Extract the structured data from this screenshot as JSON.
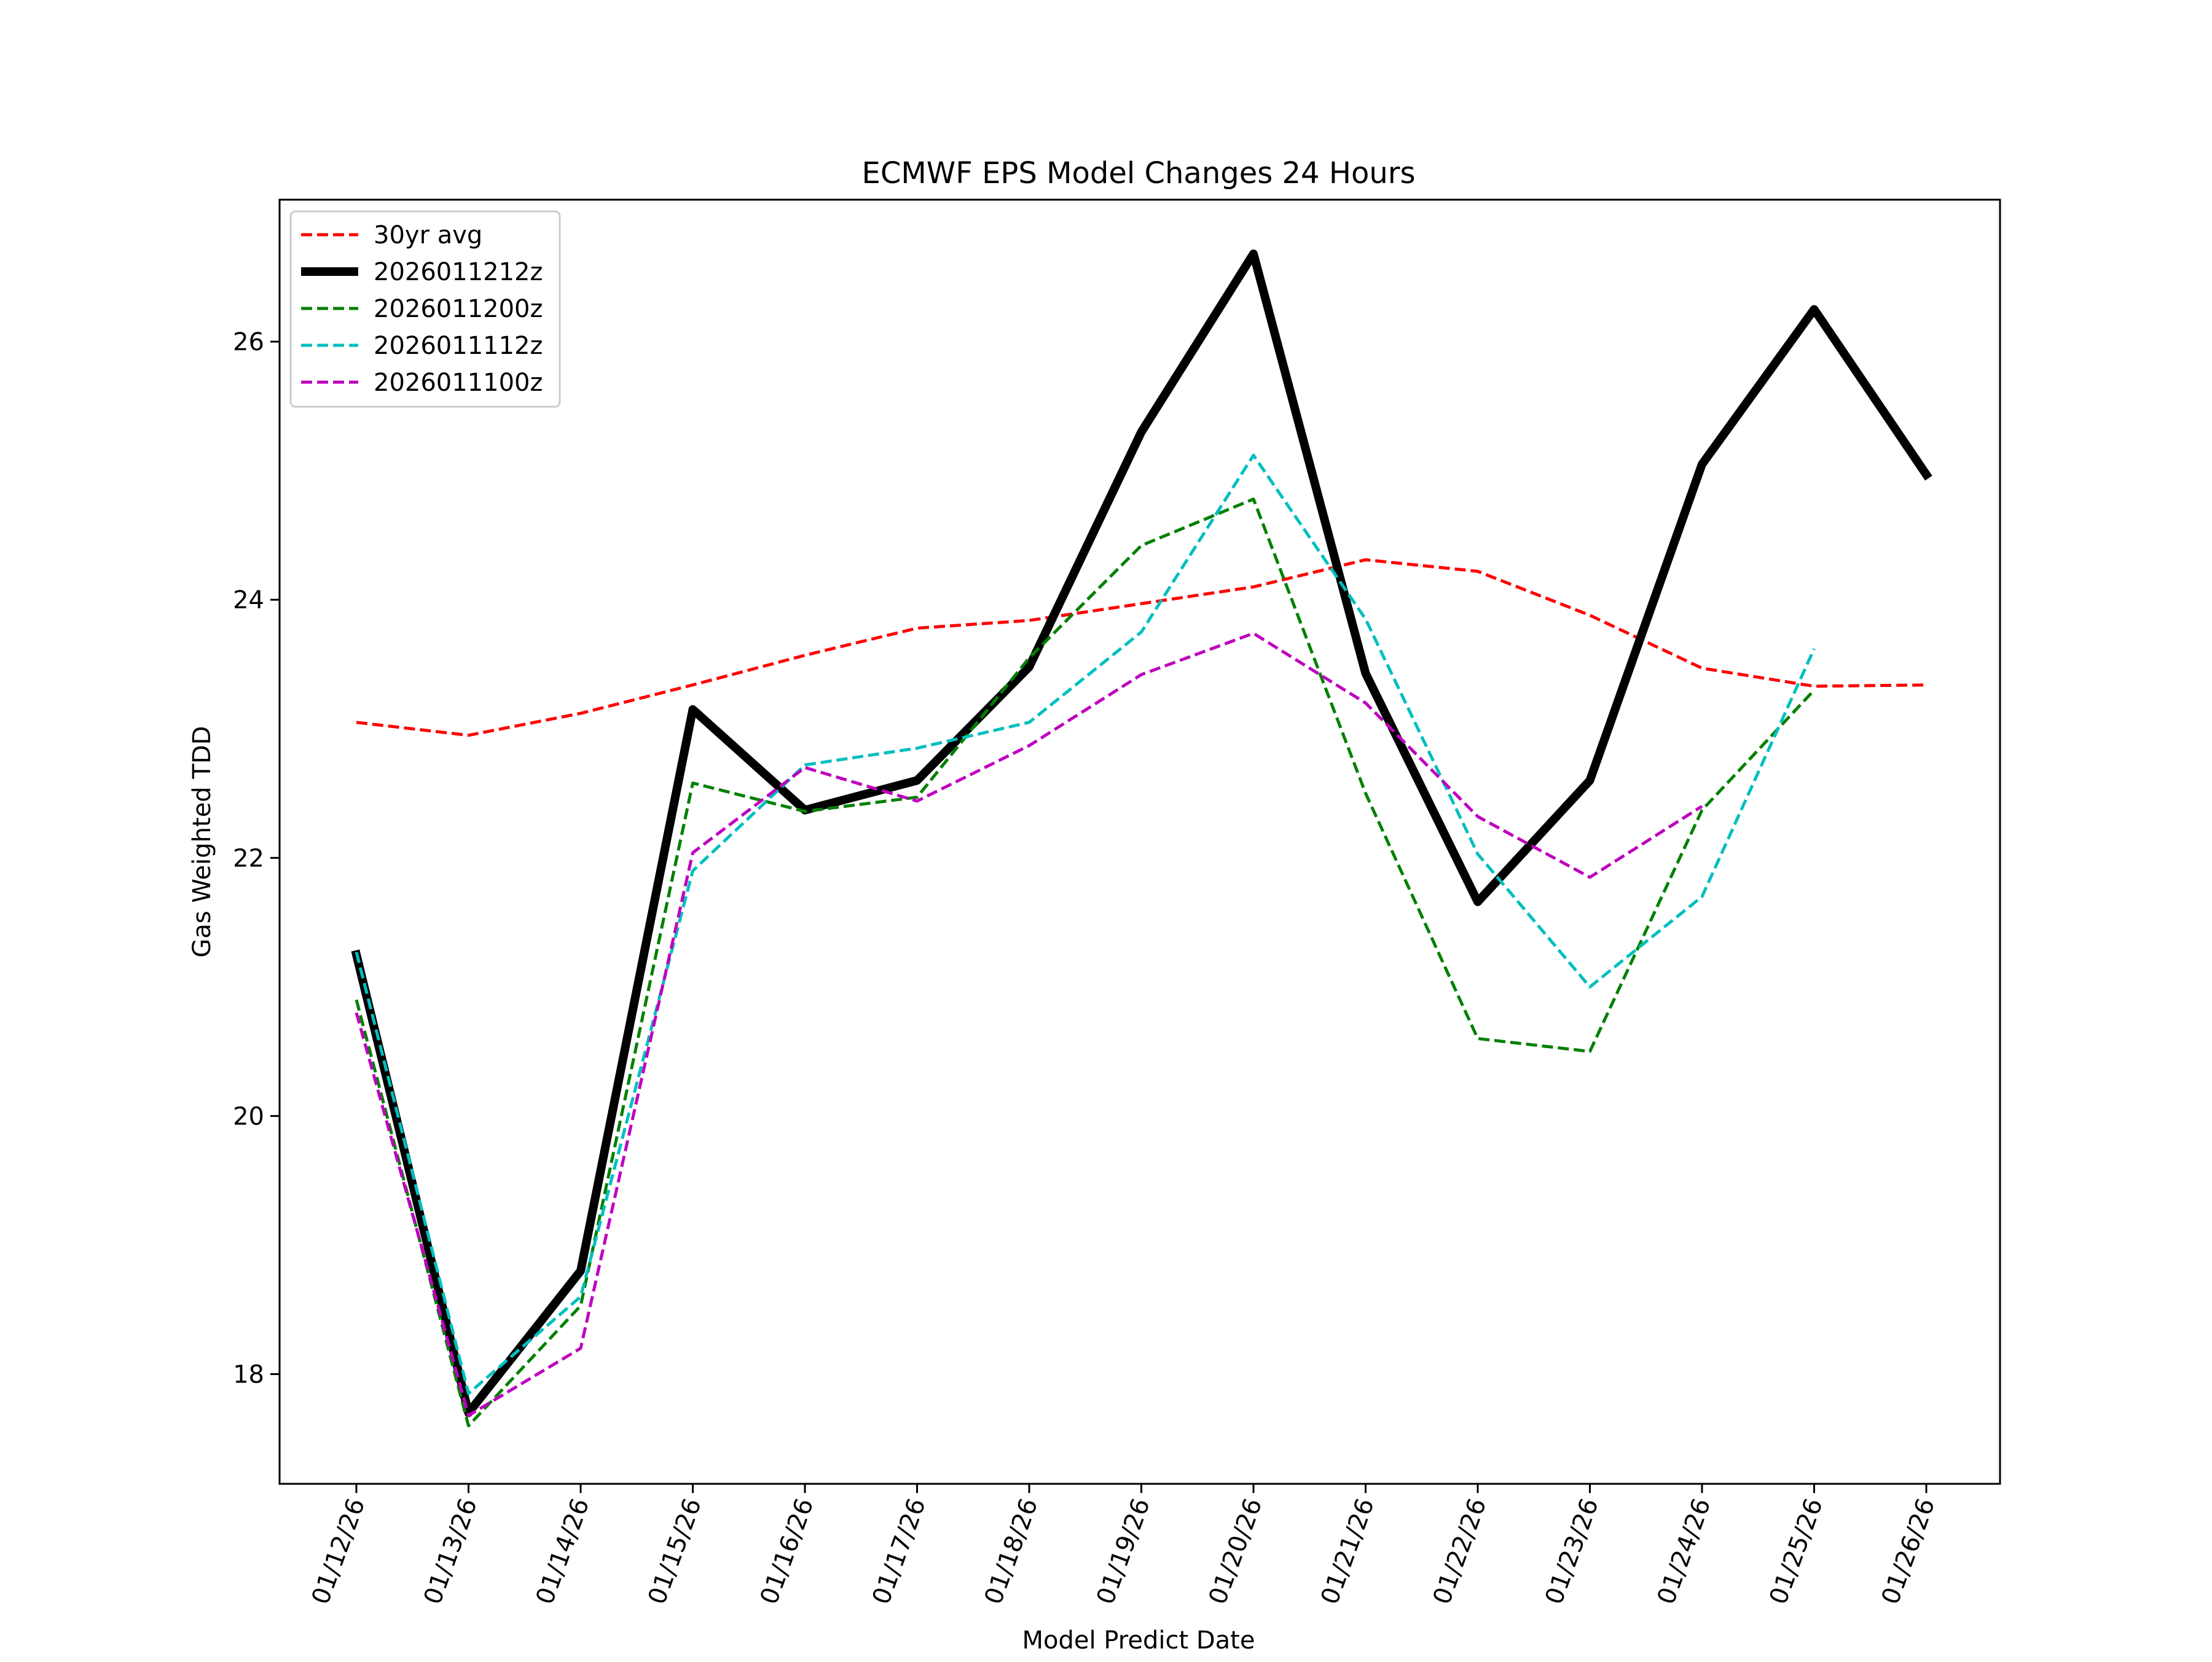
{
  "chart_data": {
    "type": "line",
    "title": "ECMWF EPS Model Changes 24 Hours",
    "xlabel": "Model Predict Date",
    "ylabel": "Gas Weighted TDD",
    "categories": [
      "01/12/26",
      "01/13/26",
      "01/14/26",
      "01/15/26",
      "01/16/26",
      "01/17/26",
      "01/18/26",
      "01/19/26",
      "01/20/26",
      "01/21/26",
      "01/22/26",
      "01/23/26",
      "01/24/26",
      "01/25/26",
      "01/26/26"
    ],
    "ylim": [
      17.15,
      27.1
    ],
    "yticks": [
      "18",
      "20",
      "22",
      "24",
      "26"
    ],
    "grid": false,
    "legend_position": "top-left",
    "series": [
      {
        "name": "30yr avg",
        "color": "#ff0000",
        "style": "dashed",
        "width": 5,
        "values": [
          23.05,
          22.95,
          23.12,
          23.34,
          23.57,
          23.78,
          23.84,
          23.97,
          24.1,
          24.31,
          24.22,
          23.88,
          23.47,
          23.33,
          23.34
        ]
      },
      {
        "name": "2026011212z",
        "color": "#000000",
        "style": "solid",
        "width": 14,
        "values": [
          21.25,
          17.7,
          18.8,
          23.15,
          22.37,
          22.6,
          23.48,
          25.3,
          26.68,
          23.43,
          21.66,
          22.6,
          25.05,
          26.25,
          24.97
        ]
      },
      {
        "name": "2026011200z",
        "color": "#008000",
        "style": "dashed",
        "width": 5,
        "values": [
          20.9,
          17.6,
          18.53,
          22.58,
          22.36,
          22.47,
          23.55,
          24.42,
          24.78,
          22.5,
          20.6,
          20.5,
          22.37,
          23.3,
          null
        ]
      },
      {
        "name": "2026011112z",
        "color": "#00bfbf",
        "style": "dashed",
        "width": 5,
        "values": [
          21.27,
          17.85,
          18.6,
          21.9,
          22.72,
          22.85,
          23.05,
          23.75,
          25.12,
          23.85,
          22.03,
          21.0,
          21.7,
          23.62,
          null
        ]
      },
      {
        "name": "2026011100z",
        "color": "#bf00bf",
        "style": "dashed",
        "width": 5,
        "values": [
          20.8,
          17.68,
          18.2,
          22.04,
          22.7,
          22.44,
          22.87,
          23.42,
          23.74,
          23.2,
          22.32,
          21.85,
          22.4,
          null,
          null
        ]
      }
    ]
  }
}
